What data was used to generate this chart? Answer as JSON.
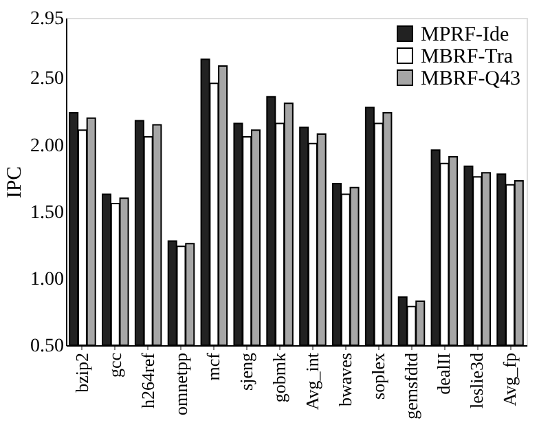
{
  "chart_data": {
    "type": "bar",
    "ylabel": "IPC",
    "categories": [
      "bzip2",
      "gcc",
      "h264ref",
      "omnetpp",
      "mcf",
      "sjeng",
      "gobmk",
      "Avg_int",
      "bwaves",
      "soplex",
      "gemsfdtd",
      "dealII",
      "leslie3d",
      "Avg_fp"
    ],
    "series": [
      {
        "name": "MPRF-Ide",
        "color": "#222222",
        "values": [
          2.24,
          1.63,
          2.18,
          1.28,
          2.64,
          2.16,
          2.36,
          2.13,
          1.71,
          2.28,
          0.86,
          1.96,
          1.84,
          1.78
        ]
      },
      {
        "name": "MBRF-Tra",
        "color": "#ffffff",
        "values": [
          2.11,
          1.56,
          2.06,
          1.24,
          2.46,
          2.06,
          2.16,
          2.01,
          1.63,
          2.16,
          0.79,
          1.86,
          1.76,
          1.7
        ]
      },
      {
        "name": "MBRF-Q43",
        "color": "#a6a6a6",
        "values": [
          2.2,
          1.6,
          2.15,
          1.26,
          2.59,
          2.11,
          2.31,
          2.08,
          1.68,
          2.24,
          0.83,
          1.91,
          1.79,
          1.73
        ]
      }
    ],
    "ylim": [
      0.5,
      2.95
    ],
    "yticks": [
      {
        "value": 0.5,
        "label": "0.50"
      },
      {
        "value": 1.0,
        "label": "1.00"
      },
      {
        "value": 1.5,
        "label": "1.50"
      },
      {
        "value": 2.0,
        "label": "2.00"
      },
      {
        "value": 2.5,
        "label": "2.50"
      },
      {
        "value": 2.95,
        "label": "2.95"
      }
    ],
    "grid": false,
    "legend": "top right"
  }
}
